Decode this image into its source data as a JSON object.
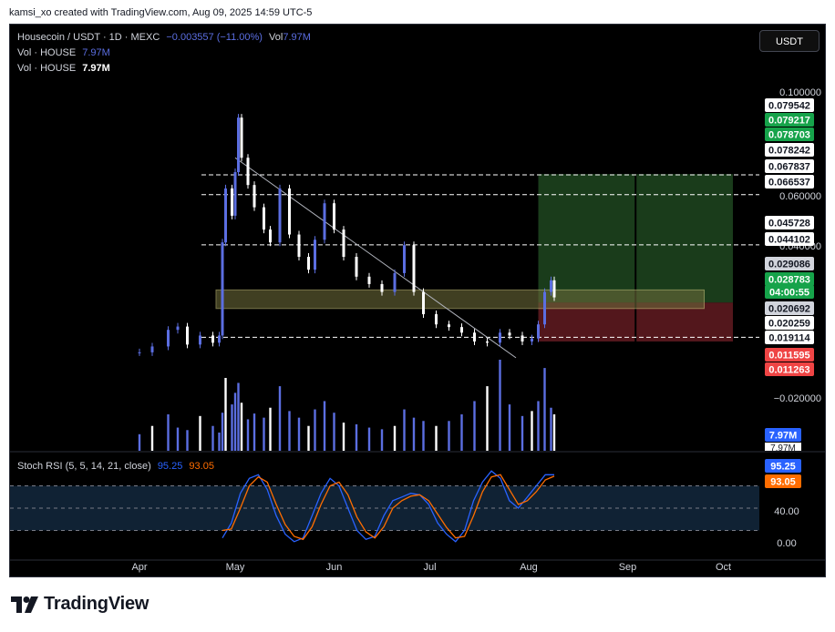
{
  "caption": "kamsi_xo created with TradingView.com, Aug 09, 2025 14:59 UTC-5",
  "legend": {
    "symbol": "Housecoin / USDT · 1D · MEXC",
    "change": "−0.003557 (−11.00%)",
    "vol_prefix": "Vol",
    "vol_value": "7.97M",
    "vol_line1_label": "Vol · HOUSE",
    "vol_line1_value": "7.97M",
    "vol_line2_label": "Vol · HOUSE",
    "vol_line2_value": "7.97M"
  },
  "currency_button": "USDT",
  "brand": "TradingView",
  "colors": {
    "candle": "#5b6ee1",
    "candle_white": "#ffffff",
    "stoch_k": "#2962ff",
    "stoch_d": "#ff6d00",
    "target_zone": "#1e4620",
    "stop_zone": "#5c1a1f",
    "range_box": "#6b6a3a"
  },
  "chart_data": [
    {
      "type": "candlestick",
      "title": "Housecoin / USDT · 1D · MEXC",
      "x_ticks": [
        "Apr",
        "May",
        "Jun",
        "Jul",
        "Aug",
        "Sep",
        "Oct"
      ],
      "y_tick_labels": [
        "0.100000",
        "0.060000",
        "0.040000",
        "−0.020000"
      ],
      "y_scale": "log",
      "price_labels": [
        {
          "text": "0.079542",
          "style": "white"
        },
        {
          "text": "0.079217",
          "style": "green"
        },
        {
          "text": "0.078703",
          "style": "green"
        },
        {
          "text": "0.078242",
          "style": "white"
        },
        {
          "text": "0.067837",
          "style": "white"
        },
        {
          "text": "0.066537",
          "style": "white"
        },
        {
          "text": "0.045728",
          "style": "white"
        },
        {
          "text": "0.044102",
          "style": "white"
        },
        {
          "text": "0.029086",
          "style": "gray"
        },
        {
          "text": "0.028783",
          "style": "green"
        },
        {
          "text": "04:00:55",
          "style": "green"
        },
        {
          "text": "0.020692",
          "style": "gray"
        },
        {
          "text": "0.020259",
          "style": "white"
        },
        {
          "text": "0.019114",
          "style": "white"
        },
        {
          "text": "0.011595",
          "style": "red"
        },
        {
          "text": "0.011263",
          "style": "red"
        }
      ],
      "volume_labels": [
        "7.97M",
        "7.97M"
      ],
      "levels": [
        0.078242,
        0.066537,
        0.044102,
        0.020692
      ],
      "range_box": {
        "from": "Apr 25",
        "to": "Sep 25",
        "low": 0.0262,
        "high": 0.0305
      },
      "trendline": {
        "from": [
          "May 1",
          0.09
        ],
        "to": [
          "Jul 28",
          0.0175
        ]
      },
      "position": {
        "entry": 0.0275,
        "target": 0.0787,
        "stop": 0.02,
        "from": "Aug 4",
        "to": "Oct 4"
      },
      "series": [
        {
          "date": "Apr 1",
          "price": 0.0183
        },
        {
          "date": "Apr 5",
          "price": 0.0192
        },
        {
          "date": "Apr 10",
          "price": 0.022
        },
        {
          "date": "Apr 13",
          "price": 0.0226
        },
        {
          "date": "Apr 16",
          "price": 0.0195
        },
        {
          "date": "Apr 20",
          "price": 0.021
        },
        {
          "date": "Apr 24",
          "price": 0.0198
        },
        {
          "date": "Apr 26",
          "price": 0.021
        },
        {
          "date": "Apr 27",
          "price": 0.045
        },
        {
          "date": "Apr 28",
          "price": 0.07
        },
        {
          "date": "Apr 30",
          "price": 0.056
        },
        {
          "date": "May 1",
          "price": 0.08
        },
        {
          "date": "May 2",
          "price": 0.125
        },
        {
          "date": "May 3",
          "price": 0.09
        },
        {
          "date": "May 5",
          "price": 0.072
        },
        {
          "date": "May 7",
          "price": 0.06
        },
        {
          "date": "May 10",
          "price": 0.05
        },
        {
          "date": "May 12",
          "price": 0.045
        },
        {
          "date": "May 15",
          "price": 0.07
        },
        {
          "date": "May 18",
          "price": 0.048
        },
        {
          "date": "May 21",
          "price": 0.04
        },
        {
          "date": "May 24",
          "price": 0.036
        },
        {
          "date": "May 26",
          "price": 0.046
        },
        {
          "date": "May 29",
          "price": 0.062
        },
        {
          "date": "Jun 1",
          "price": 0.05
        },
        {
          "date": "Jun 4",
          "price": 0.04
        },
        {
          "date": "Jun 8",
          "price": 0.034
        },
        {
          "date": "Jun 12",
          "price": 0.032
        },
        {
          "date": "Jun 16",
          "price": 0.03
        },
        {
          "date": "Jun 20",
          "price": 0.035
        },
        {
          "date": "Jun 23",
          "price": 0.044
        },
        {
          "date": "Jun 26",
          "price": 0.03
        },
        {
          "date": "Jun 29",
          "price": 0.025
        },
        {
          "date": "Jul 3",
          "price": 0.023
        },
        {
          "date": "Jul 7",
          "price": 0.0225
        },
        {
          "date": "Jul 11",
          "price": 0.0215
        },
        {
          "date": "Jul 15",
          "price": 0.02
        },
        {
          "date": "Jul 19",
          "price": 0.0198
        },
        {
          "date": "Jul 23",
          "price": 0.0215
        },
        {
          "date": "Jul 26",
          "price": 0.021
        },
        {
          "date": "Jul 30",
          "price": 0.02
        },
        {
          "date": "Aug 2",
          "price": 0.0205
        },
        {
          "date": "Aug 4",
          "price": 0.023
        },
        {
          "date": "Aug 6",
          "price": 0.03
        },
        {
          "date": "Aug 8",
          "price": 0.033
        },
        {
          "date": "Aug 9",
          "price": 0.0287
        }
      ],
      "volume": [
        20,
        30,
        44,
        28,
        25,
        42,
        30,
        22,
        46,
        88,
        56,
        70,
        82,
        58,
        38,
        45,
        40,
        52,
        78,
        48,
        40,
        30,
        50,
        60,
        46,
        34,
        32,
        28,
        26,
        30,
        50,
        40,
        36,
        30,
        36,
        44,
        60,
        78,
        110,
        56,
        42,
        48,
        60,
        100,
        52,
        44
      ]
    },
    {
      "type": "line",
      "title": "Stoch RSI (5, 5, 14, 21, close)",
      "legend_values": [
        "95.25",
        "93.05"
      ],
      "y_tick_labels": [
        "40.00",
        "0.00"
      ],
      "value_labels": [
        "95.25",
        "93.05"
      ],
      "ylim": [
        -10,
        110
      ],
      "series": [
        {
          "values": [
            10,
            30,
            70,
            90,
            95,
            75,
            40,
            15,
            5,
            10,
            40,
            70,
            90,
            80,
            50,
            20,
            8,
            12,
            40,
            60,
            65,
            70,
            68,
            55,
            30,
            15,
            5,
            20,
            60,
            85,
            100,
            90,
            60,
            50,
            65,
            80,
            95,
            95
          ]
        },
        {
          "values": [
            20,
            22,
            50,
            80,
            92,
            85,
            55,
            28,
            12,
            8,
            25,
            55,
            80,
            85,
            68,
            38,
            18,
            10,
            25,
            50,
            60,
            66,
            68,
            60,
            42,
            24,
            10,
            12,
            40,
            72,
            92,
            95,
            75,
            55,
            60,
            72,
            88,
            93
          ]
        }
      ]
    }
  ]
}
